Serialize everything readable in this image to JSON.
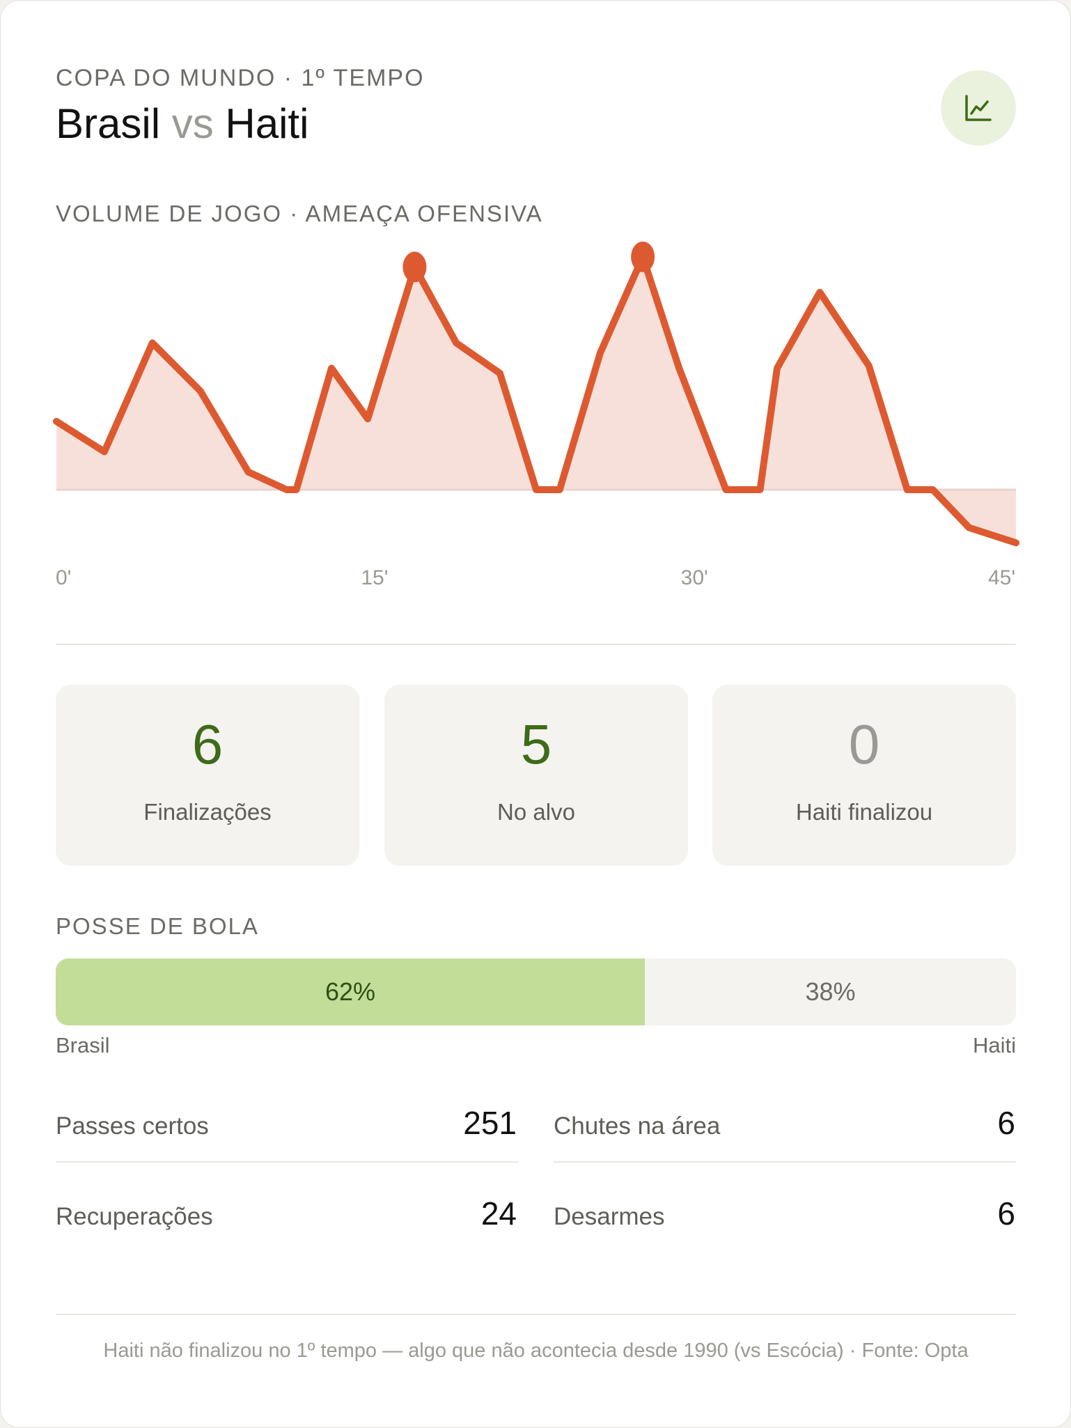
{
  "header": {
    "eyebrow": "COPA DO MUNDO · 1º TEMPO",
    "team_home": "Brasil",
    "vs": "vs",
    "team_away": "Haiti",
    "chart_icon": "line-chart-icon"
  },
  "chart_section_label": "VOLUME DE JOGO · AMEAÇA OFENSIVA",
  "chart_data": {
    "type": "area",
    "title": "",
    "xlabel": "",
    "ylabel": "",
    "xlim": [
      0,
      45
    ],
    "ylim": [
      -2,
      9
    ],
    "x_ticks": [
      "0'",
      "15'",
      "30'",
      "45'"
    ],
    "x_tick_values": [
      0,
      15,
      30,
      45
    ],
    "baseline": 0,
    "grid": false,
    "legend": "none",
    "series": [
      {
        "color": "#dd5a31",
        "fill": "#f8e0da",
        "x": [
          0,
          2.25,
          4.5,
          6.75,
          9,
          10.8,
          11.25,
          12.9,
          14.6,
          16.8,
          18.75,
          20.8,
          22.5,
          23.6,
          25.5,
          27.5,
          29.2,
          31.4,
          33,
          33.8,
          35.8,
          38.1,
          39.9,
          41.1,
          42.8,
          45
        ],
        "y": [
          2.7,
          1.5,
          5.8,
          3.9,
          0.7,
          0,
          0,
          4.8,
          2.8,
          8.8,
          5.8,
          4.6,
          0,
          0,
          5.4,
          9.2,
          4.8,
          0,
          0,
          4.8,
          7.8,
          4.9,
          0,
          0,
          -1.5,
          -2.1
        ],
        "highlight_x": [
          16.8,
          27.5
        ]
      }
    ]
  },
  "stats": [
    {
      "value": "6",
      "label": "Finalizações",
      "color": "#3d6b17"
    },
    {
      "value": "5",
      "label": "No alvo",
      "color": "#3d6b17"
    },
    {
      "value": "0",
      "label": "Haiti finalizou",
      "color": "#9a9992"
    }
  ],
  "possession": {
    "label": "POSSE DE BOLA",
    "home_pct": 62,
    "home_text": "62%",
    "away_text": "38%",
    "home_team": "Brasil",
    "away_team": "Haiti"
  },
  "details": [
    {
      "label": "Passes certos",
      "value": "251"
    },
    {
      "label": "Chutes na área",
      "value": "6"
    },
    {
      "label": "Recuperações",
      "value": "24"
    },
    {
      "label": "Desarmes",
      "value": "6"
    }
  ],
  "footer": "Haiti não finalizou no 1º tempo — algo que não acontecia desde 1990 (vs Escócia) · Fonte: Opta"
}
